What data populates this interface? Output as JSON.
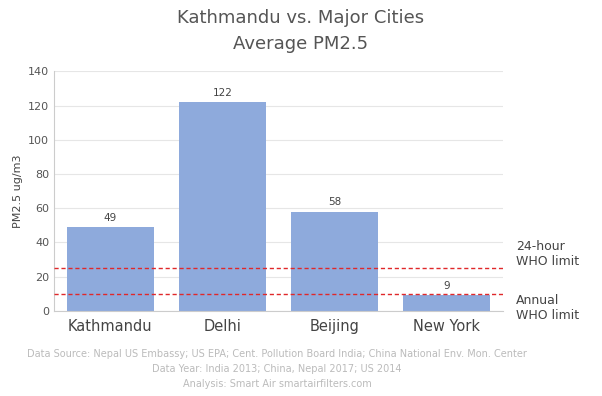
{
  "chart_data": {
    "type": "bar",
    "title": "Kathmandu vs. Major Cities",
    "subtitle": "Average PM2.5",
    "y_label": "PM2.5 ug/m3",
    "categories": [
      "Kathmandu",
      "Delhi",
      "Beijing",
      "New York"
    ],
    "values": [
      49,
      122,
      58,
      9
    ],
    "color": "#8eaadc",
    "data_labels": true,
    "ylim": [
      0,
      140
    ],
    "yticks": [
      0,
      20,
      40,
      60,
      80,
      100,
      120,
      140
    ],
    "grid": true,
    "reference_lines": [
      {
        "value": 25,
        "label": "24-hour\nWHO limit",
        "color": "#e0282a"
      },
      {
        "value": 10,
        "label": "Annual\nWHO limit",
        "color": "#e0282a"
      }
    ],
    "notes": [
      "Data Source: Nepal US Embassy; US EPA; Cent. Pollution Board India; China National Env. Mon. Center",
      "Data Year: India 2013; China, Nepal 2017; US 2014",
      "Analysis: Smart Air smartairfilters.com"
    ]
  }
}
